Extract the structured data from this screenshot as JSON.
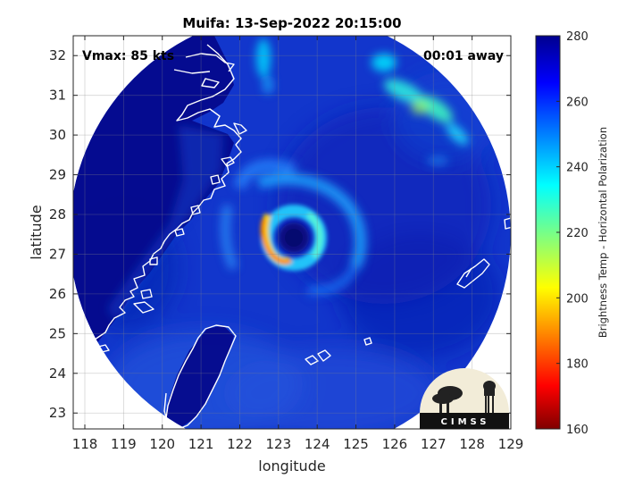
{
  "figure": {
    "title": "Muifa: 13-Sep-2022 20:15:00",
    "vmax_label": "Vmax: 85 kts",
    "time_away_label": "00:01 away",
    "xlabel": "longitude",
    "ylabel": "latitude",
    "x_ticks": [
      "118",
      "119",
      "120",
      "121",
      "122",
      "123",
      "124",
      "125",
      "126",
      "127",
      "128",
      "129"
    ],
    "y_ticks": [
      "23",
      "24",
      "25",
      "26",
      "27",
      "28",
      "29",
      "30",
      "31",
      "32"
    ],
    "xlim": [
      117.7,
      129.0
    ],
    "ylim": [
      22.6,
      32.5
    ],
    "grid": true,
    "swath_center": {
      "lon": 123.0,
      "lat": 27.55
    },
    "storm_eye": {
      "lon": 123.12,
      "lat": 27.5
    }
  },
  "colorbar": {
    "label": "Brightness Temp - Horizontal Polarization",
    "ticks": [
      "160",
      "180",
      "200",
      "220",
      "240",
      "260",
      "280"
    ],
    "min": 160,
    "max": 280,
    "colormap": "jet"
  },
  "logo": {
    "text": "CIMSS"
  },
  "colors": {
    "field_background": "#1236cc",
    "outside_swath": "#ffffff",
    "coastline": "#ffffff",
    "land_warm": "#050a8c"
  }
}
